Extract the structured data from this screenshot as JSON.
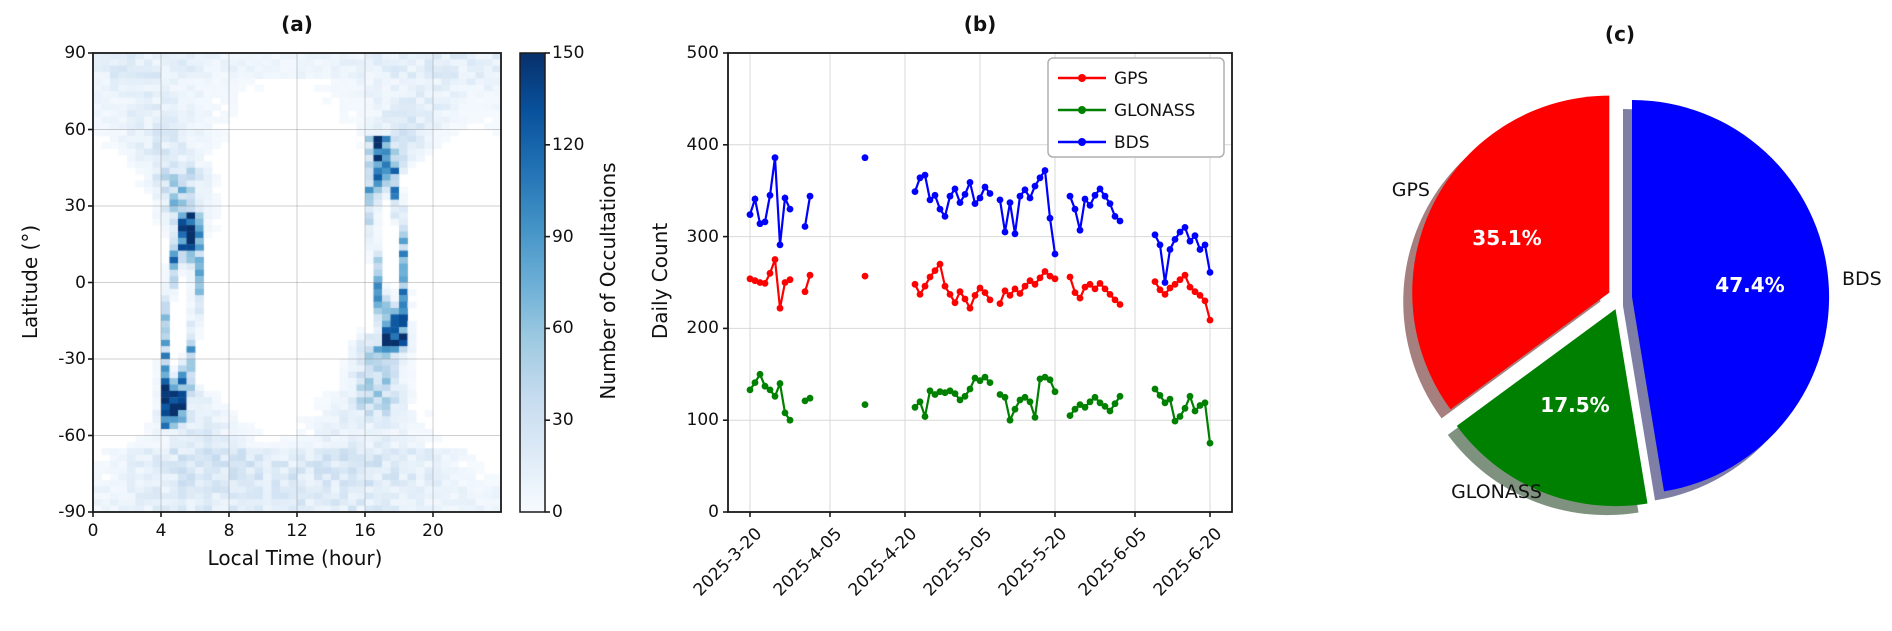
{
  "chart_data": [
    {
      "type": "heatmap",
      "title": "(a)",
      "xlabel": "Local Time (hour)",
      "ylabel": "Latitude (°)",
      "xlim": [
        0,
        24
      ],
      "ylim": [
        -90,
        90
      ],
      "x_ticks": [
        0,
        4,
        8,
        12,
        16,
        20
      ],
      "y_ticks": [
        90,
        60,
        30,
        0,
        -30,
        -60,
        -90
      ],
      "grid": true,
      "bins": {
        "x": 48,
        "y": 72
      },
      "colorbar": {
        "label": "Number of Occultations",
        "ticks": [
          0,
          30,
          60,
          90,
          120,
          150
        ],
        "vmin": 0,
        "vmax": 150,
        "colormap": "Blues",
        "stops": [
          [
            0,
            "#f7fbff"
          ],
          [
            0.125,
            "#deebf7"
          ],
          [
            0.25,
            "#c6dbef"
          ],
          [
            0.375,
            "#9ecae1"
          ],
          [
            0.5,
            "#6baed6"
          ],
          [
            0.625,
            "#4292c6"
          ],
          [
            0.75,
            "#2171b5"
          ],
          [
            0.875,
            "#08519c"
          ],
          [
            1,
            "#08306b"
          ]
        ]
      },
      "pattern": {
        "seed": 11,
        "loops": [
          {
            "cx": 5.15,
            "cy": -14,
            "ax": 0.85,
            "ay": 34,
            "tilt": 0.45,
            "side_amp": 66,
            "top_amp": 132,
            "bot_amp": 142,
            "thick": 0.14,
            "right_bias": 1.15
          },
          {
            "cx": 17.35,
            "cy": 14.5,
            "ax": 0.85,
            "ay": 34.5,
            "tilt": -0.4,
            "side_amp": 70,
            "top_amp": 126,
            "bot_amp": 150,
            "thick": 0.14,
            "left_bias": 1.1
          }
        ],
        "tails": [
          {
            "lt": 5.4,
            "lat_from": 18,
            "lat_to": 48,
            "amp": 32,
            "sig": 0.8
          },
          {
            "lt": 16.8,
            "lat_from": -54,
            "lat_to": -18,
            "amp": 34,
            "sig": 0.8
          }
        ],
        "fans": [
          {
            "pole": 1,
            "lat_start": 28,
            "lt0": 5.0,
            "drift": -2.2,
            "hw0": 0.55,
            "hw1": 5.5,
            "amp0": 26,
            "amp1": 8
          },
          {
            "pole": 1,
            "lat_start": 42,
            "lt0": 17.6,
            "drift": 2.1,
            "hw0": 0.6,
            "hw1": 5.8,
            "amp0": 26,
            "amp1": 8
          },
          {
            "pole": -1,
            "lat_start": -40,
            "lt0": 5.6,
            "drift": 1.7,
            "hw0": 0.7,
            "hw1": 6.2,
            "amp0": 24,
            "amp1": 9
          },
          {
            "pole": -1,
            "lat_start": -24,
            "lt0": 16.9,
            "drift": -1.9,
            "hw0": 0.55,
            "hw1": 5.8,
            "amp0": 22,
            "amp1": 9
          }
        ],
        "bands": [
          {
            "lat_from": -81,
            "lat_to": -64,
            "amp": 11,
            "lt_center": 11.5,
            "lt_halfwidth": 10.2,
            "edge_pow": 8
          },
          {
            "lat_from": -90,
            "lat_to": -81,
            "amp": 7,
            "lt_center": 12,
            "lt_halfwidth": 12.8,
            "edge_pow": 10
          },
          {
            "lat_from": 79,
            "lat_to": 90,
            "amp": 5.5,
            "lt_center": 12,
            "lt_halfwidth": 13,
            "edge_pow": 10
          }
        ]
      }
    },
    {
      "type": "line",
      "title": "(b)",
      "xlabel": "",
      "ylabel": "Daily Count",
      "ylim": [
        0,
        500
      ],
      "y_ticks": [
        0,
        100,
        200,
        300,
        400,
        500
      ],
      "grid": true,
      "legend_position": "upper right",
      "x_tick_labels": [
        "2025-3-20",
        "2025-4-05",
        "2025-4-20",
        "2025-5-05",
        "2025-5-20",
        "2025-6-05",
        "2025-6-20"
      ],
      "x_tick_days": [
        4,
        20,
        35,
        50,
        65,
        81,
        96
      ],
      "days": [
        4,
        5,
        6,
        7,
        8,
        9,
        10,
        11,
        12,
        15,
        16,
        27,
        37,
        38,
        39,
        40,
        41,
        42,
        43,
        44,
        45,
        46,
        47,
        48,
        49,
        50,
        51,
        52,
        54,
        55,
        56,
        57,
        58,
        59,
        60,
        61,
        62,
        63,
        64,
        65,
        68,
        69,
        70,
        71,
        72,
        73,
        74,
        75,
        76,
        77,
        78,
        85,
        86,
        87,
        88,
        89,
        90,
        91,
        92,
        93,
        94,
        95,
        96
      ],
      "series": [
        {
          "name": "GPS",
          "color": "#ff0000",
          "values": [
            254,
            252,
            250,
            249,
            260,
            275,
            222,
            250,
            253,
            240,
            258,
            257,
            248,
            237,
            246,
            256,
            263,
            270,
            246,
            237,
            228,
            240,
            232,
            222,
            236,
            244,
            239,
            231,
            227,
            241,
            236,
            243,
            238,
            246,
            252,
            248,
            255,
            262,
            257,
            254,
            256,
            239,
            233,
            245,
            248,
            243,
            249,
            243,
            237,
            231,
            226,
            251,
            242,
            237,
            244,
            248,
            253,
            258,
            245,
            240,
            236,
            230,
            209
          ]
        },
        {
          "name": "GLONASS",
          "color": "#008000",
          "values": [
            133,
            141,
            150,
            137,
            133,
            126,
            140,
            108,
            100,
            121,
            124,
            117,
            114,
            120,
            104,
            132,
            128,
            131,
            130,
            132,
            129,
            122,
            126,
            134,
            146,
            143,
            147,
            141,
            128,
            125,
            100,
            112,
            122,
            125,
            120,
            103,
            145,
            147,
            144,
            131,
            105,
            112,
            117,
            114,
            120,
            125,
            119,
            115,
            110,
            118,
            126,
            134,
            127,
            119,
            123,
            99,
            104,
            113,
            126,
            110,
            116,
            119,
            75
          ]
        },
        {
          "name": "BDS",
          "color": "#0000ff",
          "values": [
            324,
            341,
            314,
            316,
            345,
            386,
            291,
            342,
            330,
            311,
            344,
            386,
            349,
            364,
            367,
            340,
            345,
            330,
            322,
            344,
            352,
            337,
            346,
            359,
            336,
            342,
            354,
            347,
            340,
            305,
            337,
            303,
            344,
            351,
            342,
            355,
            364,
            372,
            320,
            281,
            344,
            330,
            307,
            341,
            334,
            345,
            352,
            344,
            336,
            322,
            317,
            302,
            291,
            250,
            286,
            297,
            305,
            310,
            295,
            301,
            286,
            291,
            261
          ]
        }
      ]
    },
    {
      "type": "pie",
      "title": "(c)",
      "start_angle": 90,
      "counterclock": true,
      "shadow": true,
      "explode": 0.06,
      "slices": [
        {
          "label": "GPS",
          "value": 35.1,
          "pct": "35.1%",
          "color": "#ff0000"
        },
        {
          "label": "GLONASS",
          "value": 17.5,
          "pct": "17.5%",
          "color": "#008000"
        },
        {
          "label": "BDS",
          "value": 47.4,
          "pct": "47.4%",
          "color": "#0000ff"
        }
      ]
    }
  ]
}
